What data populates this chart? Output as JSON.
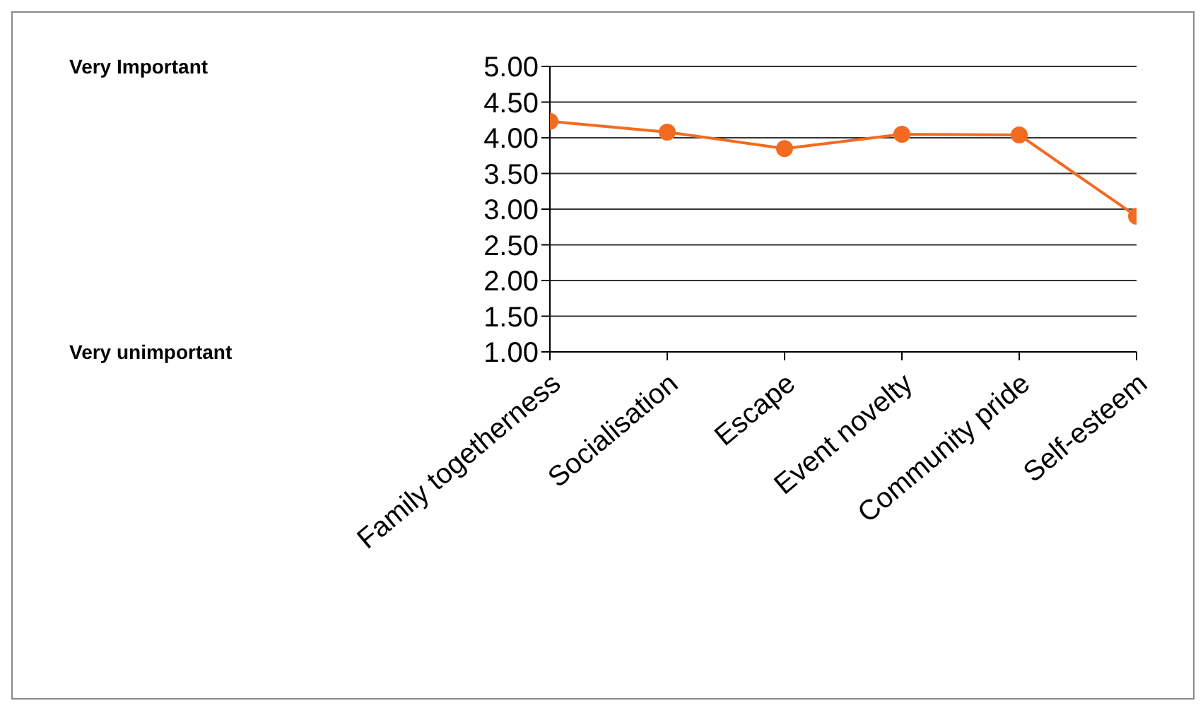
{
  "chart_data": {
    "type": "line",
    "categories": [
      "Family togetherness",
      "Socialisation",
      "Escape",
      "Event novelty",
      "Community pride",
      "Self-esteem"
    ],
    "series": [
      {
        "color": "#f26b21",
        "values": [
          4.23,
          4.08,
          3.85,
          4.05,
          4.04,
          2.9
        ]
      }
    ],
    "ylim": [
      1,
      5
    ],
    "yticks": [
      {
        "value": 1,
        "label": "1.00"
      },
      {
        "value": 1.5,
        "label": "1.50"
      },
      {
        "value": 2,
        "label": "2.00"
      },
      {
        "value": 2.5,
        "label": "2.50"
      },
      {
        "value": 3,
        "label": "3.00"
      },
      {
        "value": 3.5,
        "label": "3.50"
      },
      {
        "value": 4,
        "label": "4.00"
      },
      {
        "value": 4.5,
        "label": "4.50"
      },
      {
        "value": 5,
        "label": "5.00"
      }
    ],
    "grid": "y",
    "marker": "circle",
    "line_style": "solid",
    "annotations": [
      "Very Important",
      "Very unimportant"
    ]
  }
}
